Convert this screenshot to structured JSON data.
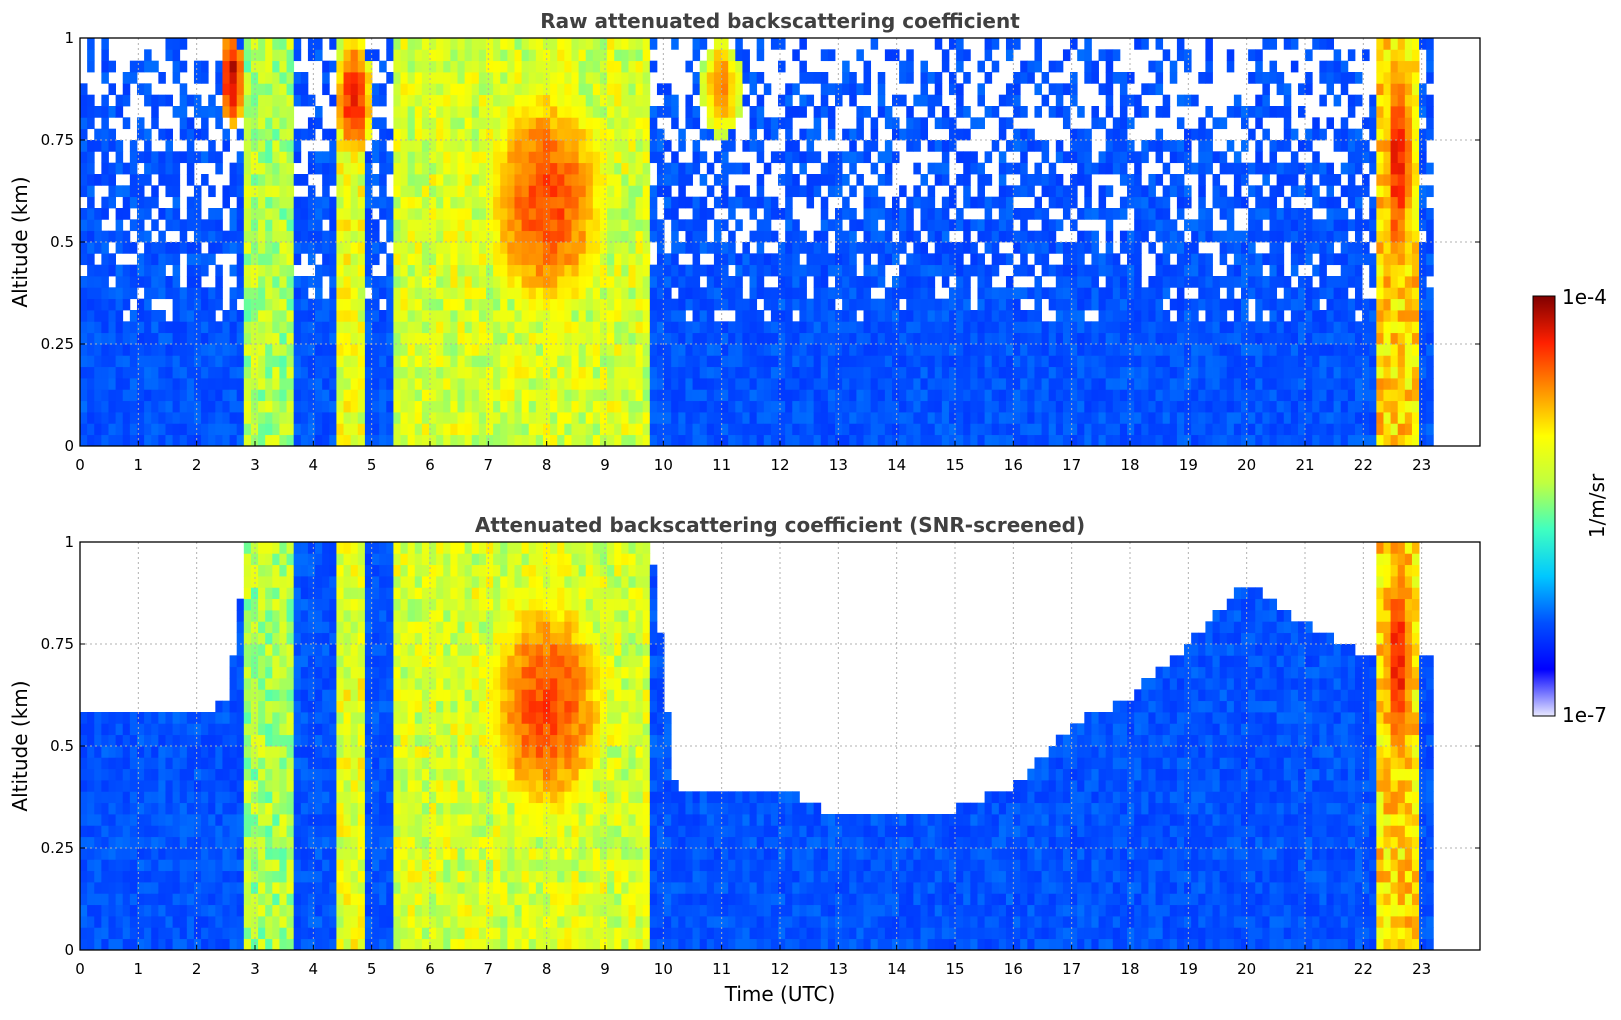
{
  "chart_data": [
    {
      "type": "heatmap",
      "title": "Raw attenuated backscattering coefficient",
      "xlabel": "",
      "ylabel": "Altitude (km)",
      "xlim": [
        0,
        24
      ],
      "ylim": [
        0,
        1
      ],
      "x_ticks": [
        "0",
        "1",
        "2",
        "3",
        "4",
        "5",
        "6",
        "7",
        "8",
        "9",
        "10",
        "11",
        "12",
        "13",
        "14",
        "15",
        "16",
        "17",
        "18",
        "19",
        "20",
        "21",
        "22",
        "23"
      ],
      "y_ticks": [
        "0",
        "0.25",
        "0.5",
        "0.75",
        "1"
      ],
      "grid": true,
      "data_coverage_end_utc": 23.2,
      "color_scale": "log10 backscatter, 1e-7 to 1e-4 1/m/sr (0 = low, 1 = high)",
      "features": [
        {
          "kind": "background",
          "value": 0.22
        },
        {
          "kind": "upper-noise",
          "x0": 0,
          "x1": 23.2,
          "y0": 0.3,
          "y1": 1.0,
          "fraction_empty": 0.55
        },
        {
          "kind": "plume",
          "x0": 2.8,
          "x1": 3.7,
          "y0": 0,
          "y1": 1.0,
          "value": 0.55
        },
        {
          "kind": "plume",
          "x0": 4.4,
          "x1": 4.9,
          "y0": 0,
          "y1": 1.0,
          "value": 0.62
        },
        {
          "kind": "plume",
          "x0": 5.4,
          "x1": 9.8,
          "y0": 0,
          "y1": 1.0,
          "value": 0.6
        },
        {
          "kind": "blob",
          "x": 8.0,
          "y": 0.6,
          "rx": 1.1,
          "ry": 0.3,
          "value": 0.85
        },
        {
          "kind": "blob",
          "x": 4.7,
          "y": 0.85,
          "rx": 0.3,
          "ry": 0.15,
          "value": 0.9
        },
        {
          "kind": "blob",
          "x": 2.6,
          "y": 0.9,
          "rx": 0.2,
          "ry": 0.12,
          "value": 0.95
        },
        {
          "kind": "blob",
          "x": 11.0,
          "y": 0.88,
          "rx": 0.35,
          "ry": 0.12,
          "value": 0.8
        },
        {
          "kind": "plume",
          "x0": 22.2,
          "x1": 22.9,
          "y0": 0,
          "y1": 1.0,
          "value": 0.7
        },
        {
          "kind": "blob",
          "x": 22.6,
          "y": 0.7,
          "rx": 0.25,
          "ry": 0.3,
          "value": 0.9
        }
      ]
    },
    {
      "type": "heatmap",
      "title": "Attenuated backscattering coefficient (SNR-screened)",
      "xlabel": "Time (UTC)",
      "ylabel": "Altitude (km)",
      "xlim": [
        0,
        24
      ],
      "ylim": [
        0,
        1
      ],
      "x_ticks": [
        "0",
        "1",
        "2",
        "3",
        "4",
        "5",
        "6",
        "7",
        "8",
        "9",
        "10",
        "11",
        "12",
        "13",
        "14",
        "15",
        "16",
        "17",
        "18",
        "19",
        "20",
        "21",
        "22",
        "23"
      ],
      "y_ticks": [
        "0",
        "0.25",
        "0.5",
        "0.75",
        "1"
      ],
      "grid": true,
      "data_coverage_end_utc": 23.2,
      "color_scale": "log10 backscatter, 1e-7 to 1e-4 1/m/sr (0 = low, 1 = high)",
      "screened_boundary_altitude_km": [
        [
          0,
          0.57
        ],
        [
          2.5,
          0.6
        ],
        [
          2.9,
          1.0
        ],
        [
          9.8,
          1.0
        ],
        [
          10.2,
          0.4
        ],
        [
          12,
          0.4
        ],
        [
          13,
          0.32
        ],
        [
          14.5,
          0.32
        ],
        [
          16,
          0.4
        ],
        [
          17,
          0.55
        ],
        [
          18,
          0.62
        ],
        [
          19,
          0.75
        ],
        [
          20,
          0.9
        ],
        [
          21,
          0.8
        ],
        [
          22,
          0.72
        ],
        [
          23.2,
          0.72
        ]
      ],
      "features": [
        {
          "kind": "background",
          "value": 0.22
        },
        {
          "kind": "plume",
          "x0": 2.8,
          "x1": 3.7,
          "y0": 0,
          "y1": 1.0,
          "value": 0.55
        },
        {
          "kind": "plume",
          "x0": 4.4,
          "x1": 4.9,
          "y0": 0,
          "y1": 1.0,
          "value": 0.62
        },
        {
          "kind": "plume",
          "x0": 5.4,
          "x1": 9.8,
          "y0": 0,
          "y1": 1.0,
          "value": 0.6
        },
        {
          "kind": "blob",
          "x": 8.0,
          "y": 0.6,
          "rx": 1.1,
          "ry": 0.3,
          "value": 0.85
        },
        {
          "kind": "plume",
          "x0": 22.2,
          "x1": 22.9,
          "y0": 0,
          "y1": 1.0,
          "value": 0.7
        },
        {
          "kind": "blob",
          "x": 22.6,
          "y": 0.7,
          "rx": 0.25,
          "ry": 0.3,
          "value": 0.9
        }
      ]
    }
  ],
  "colorbar": {
    "label": "1/m/sr",
    "max_label": "1e-4",
    "min_label": "1e-7",
    "palette": [
      "#e8e8ff",
      "#0000ff",
      "#0050ff",
      "#00c8ff",
      "#40ffc0",
      "#c0ff40",
      "#ffff00",
      "#ff9000",
      "#ff2000",
      "#800000"
    ]
  }
}
